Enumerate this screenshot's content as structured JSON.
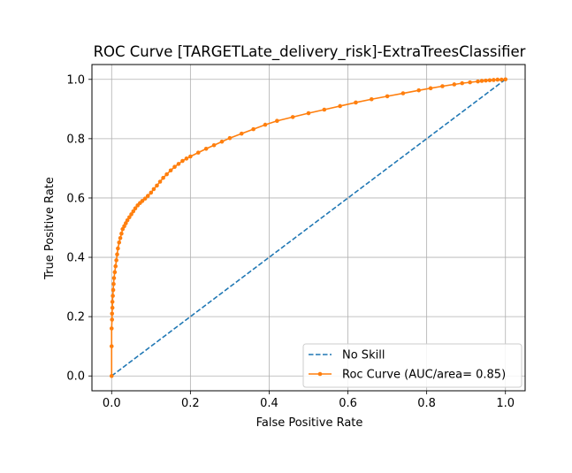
{
  "chart_data": {
    "type": "line",
    "title": "ROC Curve [TARGETLate_delivery_risk]-ExtraTreesClassifier",
    "xlabel": "False Positive Rate",
    "ylabel": "True Positive Rate",
    "xlim": [
      -0.05,
      1.05
    ],
    "ylim": [
      -0.05,
      1.05
    ],
    "xticks": [
      0.0,
      0.2,
      0.4,
      0.6,
      0.8,
      1.0
    ],
    "yticks": [
      0.0,
      0.2,
      0.4,
      0.6,
      0.8,
      1.0
    ],
    "xtick_labels": [
      "0.0",
      "0.2",
      "0.4",
      "0.6",
      "0.8",
      "1.0"
    ],
    "ytick_labels": [
      "0.0",
      "0.2",
      "0.4",
      "0.6",
      "0.8",
      "1.0"
    ],
    "grid": true,
    "legend_position": "lower-right",
    "series": [
      {
        "name": "No Skill",
        "color": "#1f77b4",
        "style": "dashed",
        "marker": "none",
        "x": [
          0.0,
          1.0
        ],
        "y": [
          0.0,
          1.0
        ]
      },
      {
        "name": "Roc Curve (AUC/area= 0.85)",
        "color": "#ff7f0e",
        "style": "solid",
        "marker": "circle",
        "x": [
          0.0,
          0.0,
          0.0,
          0.001,
          0.001,
          0.002,
          0.002,
          0.003,
          0.004,
          0.005,
          0.006,
          0.008,
          0.01,
          0.012,
          0.014,
          0.016,
          0.019,
          0.022,
          0.025,
          0.028,
          0.032,
          0.036,
          0.04,
          0.045,
          0.05,
          0.055,
          0.06,
          0.066,
          0.072,
          0.078,
          0.085,
          0.092,
          0.1,
          0.107,
          0.115,
          0.123,
          0.131,
          0.14,
          0.15,
          0.16,
          0.17,
          0.18,
          0.19,
          0.2,
          0.22,
          0.24,
          0.26,
          0.28,
          0.3,
          0.33,
          0.36,
          0.39,
          0.42,
          0.46,
          0.5,
          0.54,
          0.58,
          0.62,
          0.66,
          0.7,
          0.74,
          0.78,
          0.81,
          0.84,
          0.87,
          0.89,
          0.91,
          0.93,
          0.94,
          0.95,
          0.96,
          0.97,
          0.98,
          0.99,
          1.0
        ],
        "y": [
          0.0,
          0.1,
          0.16,
          0.19,
          0.21,
          0.23,
          0.25,
          0.27,
          0.29,
          0.31,
          0.33,
          0.35,
          0.37,
          0.39,
          0.41,
          0.43,
          0.45,
          0.465,
          0.48,
          0.495,
          0.505,
          0.515,
          0.525,
          0.535,
          0.545,
          0.555,
          0.565,
          0.575,
          0.583,
          0.59,
          0.598,
          0.607,
          0.618,
          0.63,
          0.642,
          0.655,
          0.668,
          0.68,
          0.693,
          0.705,
          0.715,
          0.725,
          0.733,
          0.74,
          0.753,
          0.766,
          0.778,
          0.79,
          0.802,
          0.817,
          0.832,
          0.847,
          0.86,
          0.873,
          0.886,
          0.898,
          0.91,
          0.922,
          0.933,
          0.943,
          0.953,
          0.963,
          0.97,
          0.977,
          0.983,
          0.987,
          0.99,
          0.993,
          0.995,
          0.996,
          0.997,
          0.998,
          0.999,
          0.999,
          1.0
        ]
      }
    ]
  }
}
